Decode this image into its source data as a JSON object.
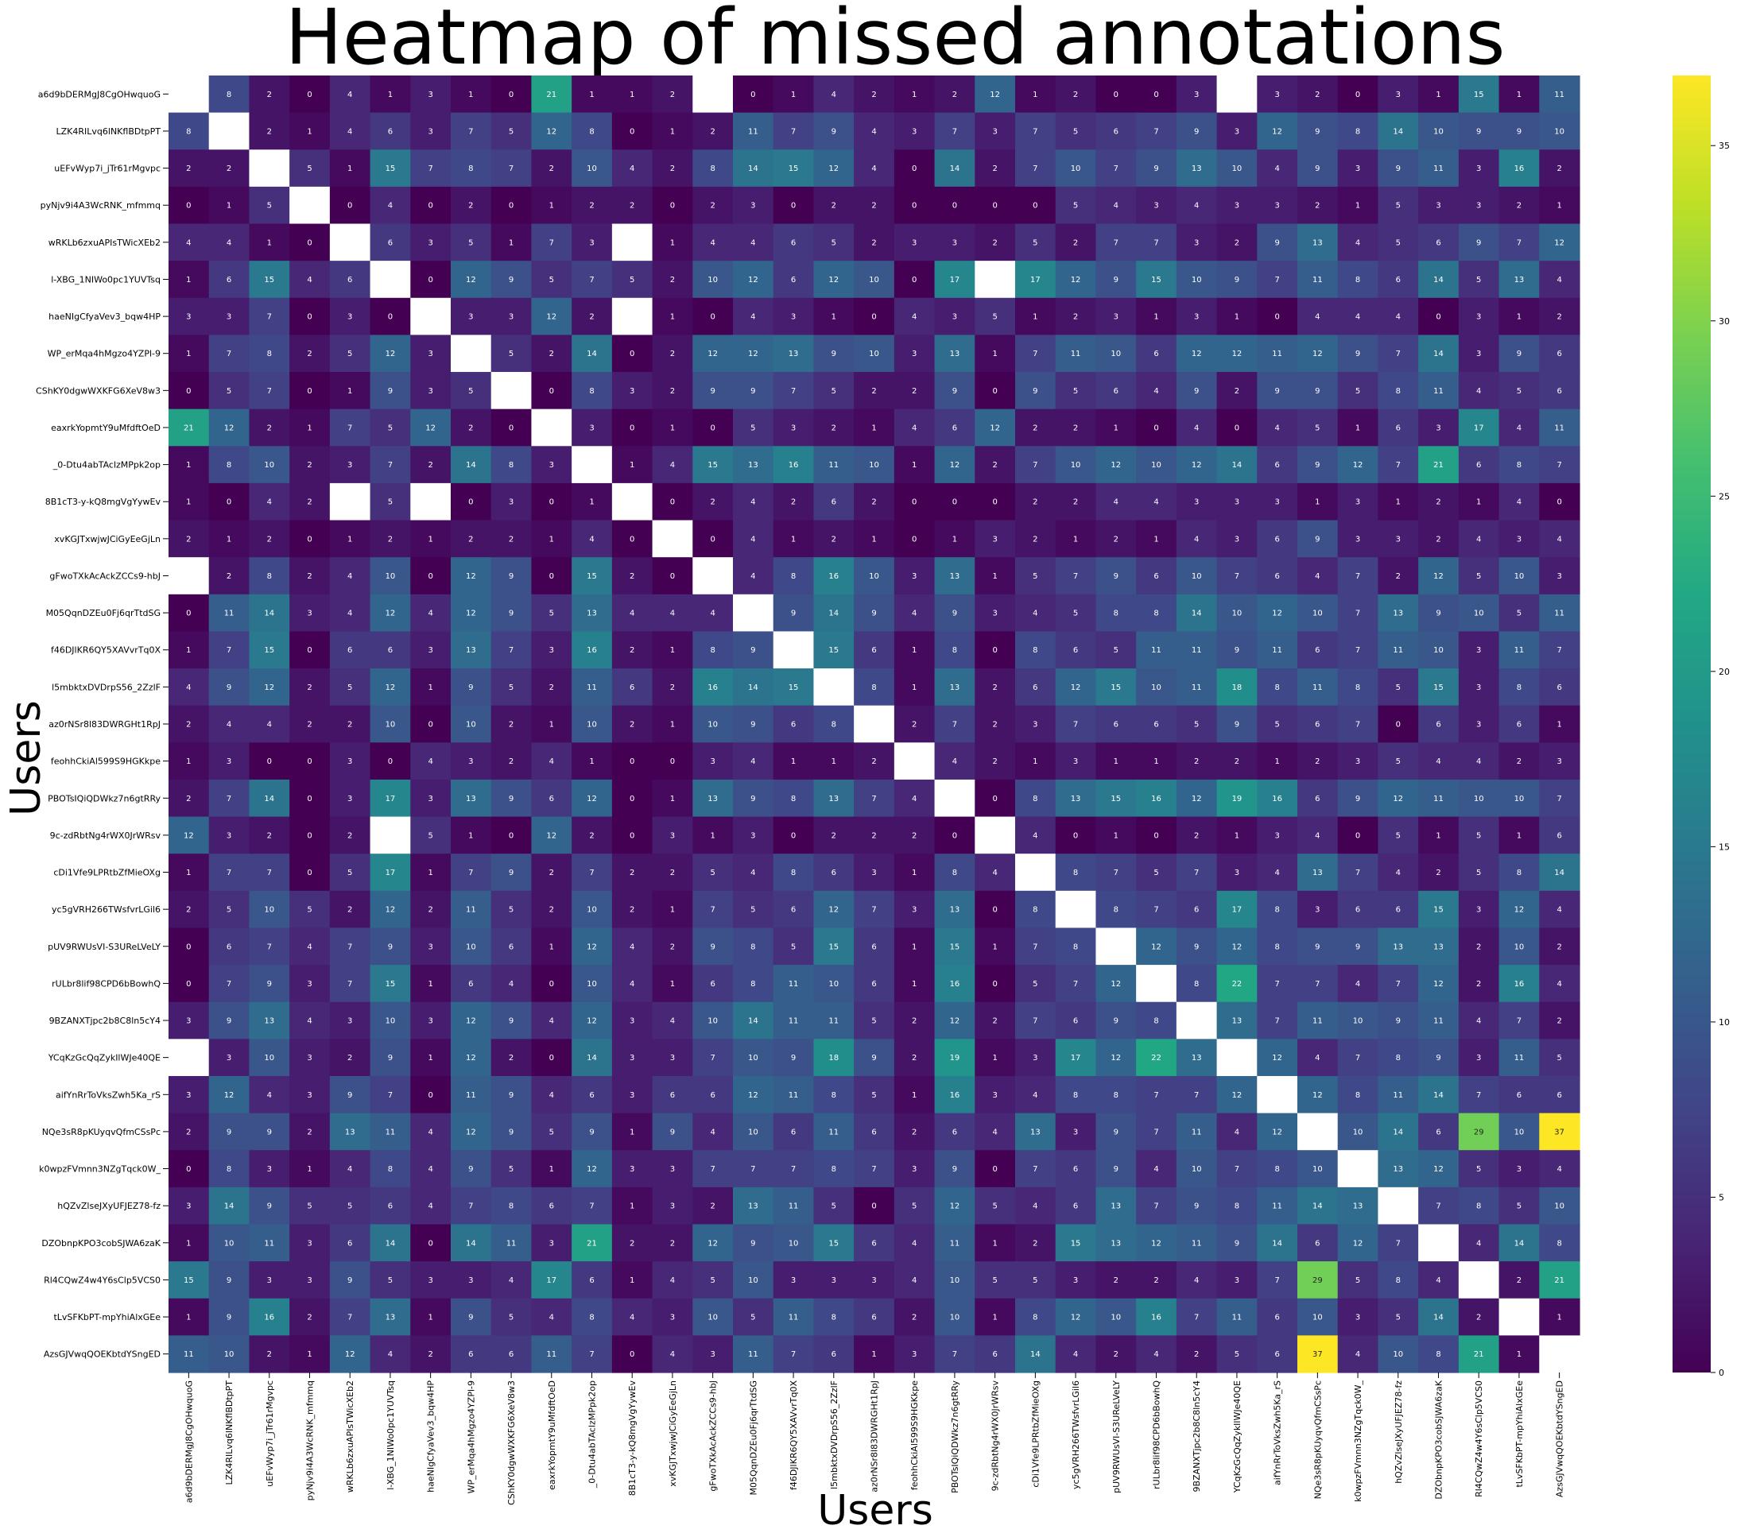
{
  "chart_data": {
    "type": "heatmap",
    "title": "Heatmap of missed annotations",
    "xlabel": "Users",
    "ylabel": "Users",
    "colormap": "viridis",
    "colorbar": {
      "min": 0,
      "max": 37,
      "ticks": [
        0,
        5,
        10,
        15,
        20,
        25,
        30,
        35
      ]
    },
    "missing_color": "#ffffff",
    "labels": [
      "a6d9bDERMgJ8CgOHwquoG",
      "LZK4RILvq6lNKflBDtpPT",
      "uEFvWyp7i_jTr61rMgvpc",
      "pyNjv9i4A3WcRNK_mfmmq",
      "wRKLb6zxuAPIsTWicXEb2",
      "l-XBG_1NIWo0pc1YUVTsq",
      "haeNIgCfyaVev3_bqw4HP",
      "WP_erMqa4hMgzo4YZPl-9",
      "CShKY0dgwWXKFG6XeV8w3",
      "eaxrkYopmtY9uMfdftOeD",
      "_0-Dtu4abTAclzMPpk2op",
      "8B1cT3-y-kQ8mgVgYywEv",
      "xvKGJTxwjwJCiGyEeGjLn",
      "gFwoTXkAcAckZCCs9-hbJ",
      "M05QqnDZEu0Fj6qrTtdSG",
      "f46DJlKR6QY5XAVvrTq0X",
      "l5mbktxDVDrpS56_2ZzlF",
      "az0rNSr8l83DWRGHt1RpJ",
      "feohhCkiAl599S9HGKkpe",
      "PBOTsIQiQDWkz7n6gtRRy",
      "9c-zdRbtNg4rWX0JrWRsv",
      "cDi1Vfe9LPRtbZfMieOXg",
      "yc5gVRH266TWsfvrLGil6",
      "pUV9RWUsVI-S3UReLVeLY",
      "rULbr8lif98CPD6bBowhQ",
      "9BZANXTjpc2b8C8ln5cY4",
      "YCqKzGcQqZykIlWJe40QE",
      "aifYnRrToVksZwh5Ka_rS",
      "NQe3sR8pKUyqvQfmCSsPc",
      "k0wpzFVmnn3NZgTqck0W_",
      "hQZvZlseJXyUFJEZ78-fz",
      "DZObnpKPO3cobSJWA6zaK",
      "Rl4CQwZ4w4Y6sClp5VCS0",
      "tLvSFKbPT-mpYhiAlxGEe",
      "AzsGJVwqQOEKbtdYSngED"
    ],
    "values": [
      [
        null,
        8,
        2,
        0,
        4,
        1,
        3,
        1,
        0,
        21,
        1,
        1,
        2,
        null,
        0,
        1,
        4,
        2,
        1,
        2,
        12,
        1,
        2,
        0,
        0,
        3,
        null,
        3,
        2,
        0,
        3,
        1,
        15,
        1,
        11
      ],
      [
        8,
        null,
        2,
        1,
        4,
        6,
        3,
        7,
        5,
        12,
        8,
        0,
        1,
        2,
        11,
        7,
        9,
        4,
        3,
        7,
        3,
        7,
        5,
        6,
        7,
        9,
        3,
        12,
        9,
        8,
        14,
        10,
        9,
        9,
        10
      ],
      [
        2,
        2,
        null,
        5,
        1,
        15,
        7,
        8,
        7,
        2,
        10,
        4,
        2,
        8,
        14,
        15,
        12,
        4,
        0,
        14,
        2,
        7,
        10,
        7,
        9,
        13,
        10,
        4,
        9,
        3,
        9,
        11,
        3,
        16,
        2
      ],
      [
        0,
        1,
        5,
        null,
        0,
        4,
        0,
        2,
        0,
        1,
        2,
        2,
        0,
        2,
        3,
        0,
        2,
        2,
        0,
        0,
        0,
        0,
        5,
        4,
        3,
        4,
        3,
        3,
        2,
        1,
        5,
        3,
        3,
        2,
        1
      ],
      [
        4,
        4,
        1,
        0,
        null,
        6,
        3,
        5,
        1,
        7,
        3,
        null,
        1,
        4,
        4,
        6,
        5,
        2,
        3,
        3,
        2,
        5,
        2,
        7,
        7,
        3,
        2,
        9,
        13,
        4,
        5,
        6,
        9,
        7,
        12
      ],
      [
        1,
        6,
        15,
        4,
        6,
        null,
        0,
        12,
        9,
        5,
        7,
        5,
        2,
        10,
        12,
        6,
        12,
        10,
        0,
        17,
        null,
        17,
        12,
        9,
        15,
        10,
        9,
        7,
        11,
        8,
        6,
        14,
        5,
        13,
        4
      ],
      [
        3,
        3,
        7,
        0,
        3,
        0,
        null,
        3,
        3,
        12,
        2,
        null,
        1,
        0,
        4,
        3,
        1,
        0,
        4,
        3,
        5,
        1,
        2,
        3,
        1,
        3,
        1,
        0,
        4,
        4,
        4,
        0,
        3,
        1,
        2
      ],
      [
        1,
        7,
        8,
        2,
        5,
        12,
        3,
        null,
        5,
        2,
        14,
        0,
        2,
        12,
        12,
        13,
        9,
        10,
        3,
        13,
        1,
        7,
        11,
        10,
        6,
        12,
        12,
        11,
        12,
        9,
        7,
        14,
        3,
        9,
        6
      ],
      [
        0,
        5,
        7,
        0,
        1,
        9,
        3,
        5,
        null,
        0,
        8,
        3,
        2,
        9,
        9,
        7,
        5,
        2,
        2,
        9,
        0,
        9,
        5,
        6,
        4,
        9,
        2,
        9,
        9,
        5,
        8,
        11,
        4,
        5,
        6
      ],
      [
        21,
        12,
        2,
        1,
        7,
        5,
        12,
        2,
        0,
        null,
        3,
        0,
        1,
        0,
        5,
        3,
        2,
        1,
        4,
        6,
        12,
        2,
        2,
        1,
        0,
        4,
        0,
        4,
        5,
        1,
        6,
        3,
        17,
        4,
        11
      ],
      [
        1,
        8,
        10,
        2,
        3,
        7,
        2,
        14,
        8,
        3,
        null,
        1,
        4,
        15,
        13,
        16,
        11,
        10,
        1,
        12,
        2,
        7,
        10,
        12,
        10,
        12,
        14,
        6,
        9,
        12,
        7,
        21,
        6,
        8,
        7
      ],
      [
        1,
        0,
        4,
        2,
        null,
        5,
        null,
        0,
        3,
        0,
        1,
        null,
        0,
        2,
        4,
        2,
        6,
        2,
        0,
        0,
        0,
        2,
        2,
        4,
        4,
        3,
        3,
        3,
        1,
        3,
        1,
        2,
        1,
        4,
        0
      ],
      [
        2,
        1,
        2,
        0,
        1,
        2,
        1,
        2,
        2,
        1,
        4,
        0,
        null,
        0,
        4,
        1,
        2,
        1,
        0,
        1,
        3,
        2,
        1,
        2,
        1,
        4,
        3,
        6,
        9,
        3,
        3,
        2,
        4,
        3,
        4
      ],
      [
        null,
        2,
        8,
        2,
        4,
        10,
        0,
        12,
        9,
        0,
        15,
        2,
        0,
        null,
        4,
        8,
        16,
        10,
        3,
        13,
        1,
        5,
        7,
        9,
        6,
        10,
        7,
        6,
        4,
        7,
        2,
        12,
        5,
        10,
        3
      ],
      [
        0,
        11,
        14,
        3,
        4,
        12,
        4,
        12,
        9,
        5,
        13,
        4,
        4,
        4,
        null,
        9,
        14,
        9,
        4,
        9,
        3,
        4,
        5,
        8,
        8,
        14,
        10,
        12,
        10,
        7,
        13,
        9,
        10,
        5,
        11
      ],
      [
        1,
        7,
        15,
        0,
        6,
        6,
        3,
        13,
        7,
        3,
        16,
        2,
        1,
        8,
        9,
        null,
        15,
        6,
        1,
        8,
        0,
        8,
        6,
        5,
        11,
        11,
        9,
        11,
        6,
        7,
        11,
        10,
        3,
        11,
        7
      ],
      [
        4,
        9,
        12,
        2,
        5,
        12,
        1,
        9,
        5,
        2,
        11,
        6,
        2,
        16,
        14,
        15,
        null,
        8,
        1,
        13,
        2,
        6,
        12,
        15,
        10,
        11,
        18,
        8,
        11,
        8,
        5,
        15,
        3,
        8,
        6
      ],
      [
        2,
        4,
        4,
        2,
        2,
        10,
        0,
        10,
        2,
        1,
        10,
        2,
        1,
        10,
        9,
        6,
        8,
        null,
        2,
        7,
        2,
        3,
        7,
        6,
        6,
        5,
        9,
        5,
        6,
        7,
        0,
        6,
        3,
        6,
        1
      ],
      [
        1,
        3,
        0,
        0,
        3,
        0,
        4,
        3,
        2,
        4,
        1,
        0,
        0,
        3,
        4,
        1,
        1,
        2,
        null,
        4,
        2,
        1,
        3,
        1,
        1,
        2,
        2,
        1,
        2,
        3,
        5,
        4,
        4,
        2,
        3
      ],
      [
        2,
        7,
        14,
        0,
        3,
        17,
        3,
        13,
        9,
        6,
        12,
        0,
        1,
        13,
        9,
        8,
        13,
        7,
        4,
        null,
        0,
        8,
        13,
        15,
        16,
        12,
        19,
        16,
        6,
        9,
        12,
        11,
        10,
        10,
        7
      ],
      [
        12,
        3,
        2,
        0,
        2,
        null,
        5,
        1,
        0,
        12,
        2,
        0,
        3,
        1,
        3,
        0,
        2,
        2,
        2,
        0,
        null,
        4,
        0,
        1,
        0,
        2,
        1,
        3,
        4,
        0,
        5,
        1,
        5,
        1,
        6
      ],
      [
        1,
        7,
        7,
        0,
        5,
        17,
        1,
        7,
        9,
        2,
        7,
        2,
        2,
        5,
        4,
        8,
        6,
        3,
        1,
        8,
        4,
        null,
        8,
        7,
        5,
        7,
        3,
        4,
        13,
        7,
        4,
        2,
        5,
        8,
        14
      ],
      [
        2,
        5,
        10,
        5,
        2,
        12,
        2,
        11,
        5,
        2,
        10,
        2,
        1,
        7,
        5,
        6,
        12,
        7,
        3,
        13,
        0,
        8,
        null,
        8,
        7,
        6,
        17,
        8,
        3,
        6,
        6,
        15,
        3,
        12,
        4
      ],
      [
        0,
        6,
        7,
        4,
        7,
        9,
        3,
        10,
        6,
        1,
        12,
        4,
        2,
        9,
        8,
        5,
        15,
        6,
        1,
        15,
        1,
        7,
        8,
        null,
        12,
        9,
        12,
        8,
        9,
        9,
        13,
        13,
        2,
        10,
        2
      ],
      [
        0,
        7,
        9,
        3,
        7,
        15,
        1,
        6,
        4,
        0,
        10,
        4,
        1,
        6,
        8,
        11,
        10,
        6,
        1,
        16,
        0,
        5,
        7,
        12,
        null,
        8,
        22,
        7,
        7,
        4,
        7,
        12,
        2,
        16,
        4
      ],
      [
        3,
        9,
        13,
        4,
        3,
        10,
        3,
        12,
        9,
        4,
        12,
        3,
        4,
        10,
        14,
        11,
        11,
        5,
        2,
        12,
        2,
        7,
        6,
        9,
        8,
        null,
        13,
        7,
        11,
        10,
        9,
        11,
        4,
        7,
        2
      ],
      [
        null,
        3,
        10,
        3,
        2,
        9,
        1,
        12,
        2,
        0,
        14,
        3,
        3,
        7,
        10,
        9,
        18,
        9,
        2,
        19,
        1,
        3,
        17,
        12,
        22,
        13,
        null,
        12,
        4,
        7,
        8,
        9,
        3,
        11,
        5
      ],
      [
        3,
        12,
        4,
        3,
        9,
        7,
        0,
        11,
        9,
        4,
        6,
        3,
        6,
        6,
        12,
        11,
        8,
        5,
        1,
        16,
        3,
        4,
        8,
        8,
        7,
        7,
        12,
        null,
        12,
        8,
        11,
        14,
        7,
        6,
        6
      ],
      [
        2,
        9,
        9,
        2,
        13,
        11,
        4,
        12,
        9,
        5,
        9,
        1,
        9,
        4,
        10,
        6,
        11,
        6,
        2,
        6,
        4,
        13,
        3,
        9,
        7,
        11,
        4,
        12,
        null,
        10,
        14,
        6,
        29,
        10,
        37
      ],
      [
        0,
        8,
        3,
        1,
        4,
        8,
        4,
        9,
        5,
        1,
        12,
        3,
        3,
        7,
        7,
        7,
        8,
        7,
        3,
        9,
        0,
        7,
        6,
        9,
        4,
        10,
        7,
        8,
        10,
        null,
        13,
        12,
        5,
        3,
        4
      ],
      [
        3,
        14,
        9,
        5,
        5,
        6,
        4,
        7,
        8,
        6,
        7,
        1,
        3,
        2,
        13,
        11,
        5,
        0,
        5,
        12,
        5,
        4,
        6,
        13,
        7,
        9,
        8,
        11,
        14,
        13,
        null,
        7,
        8,
        5,
        10
      ],
      [
        1,
        10,
        11,
        3,
        6,
        14,
        0,
        14,
        11,
        3,
        21,
        2,
        2,
        12,
        9,
        10,
        15,
        6,
        4,
        11,
        1,
        2,
        15,
        13,
        12,
        11,
        9,
        14,
        6,
        12,
        7,
        null,
        4,
        14,
        8
      ],
      [
        15,
        9,
        3,
        3,
        9,
        5,
        3,
        3,
        4,
        17,
        6,
        1,
        4,
        5,
        10,
        3,
        3,
        3,
        4,
        10,
        5,
        5,
        3,
        2,
        2,
        4,
        3,
        7,
        29,
        5,
        8,
        4,
        null,
        2,
        21
      ],
      [
        1,
        9,
        16,
        2,
        7,
        13,
        1,
        9,
        5,
        4,
        8,
        4,
        3,
        10,
        5,
        11,
        8,
        6,
        2,
        10,
        1,
        8,
        12,
        10,
        16,
        7,
        11,
        6,
        10,
        3,
        5,
        14,
        2,
        null,
        1
      ],
      [
        11,
        10,
        2,
        1,
        12,
        4,
        2,
        6,
        6,
        11,
        7,
        0,
        4,
        3,
        11,
        7,
        6,
        1,
        3,
        7,
        6,
        14,
        4,
        2,
        4,
        2,
        5,
        6,
        37,
        4,
        10,
        8,
        21,
        1,
        null
      ]
    ]
  }
}
